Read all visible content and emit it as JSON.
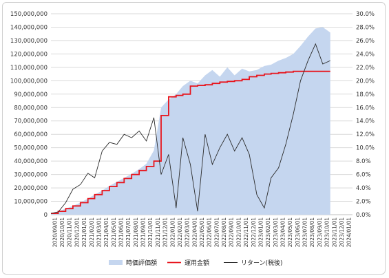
{
  "chart_data": {
    "type": "area",
    "title": "",
    "xlabel": "",
    "ylabel": "",
    "y2label": "",
    "ylim": [
      0,
      150000000
    ],
    "y_ticks": [
      "0",
      "10,000,000",
      "20,000,000",
      "30,000,000",
      "40,000,000",
      "50,000,000",
      "60,000,000",
      "70,000,000",
      "80,000,000",
      "90,000,000",
      "100,000,000",
      "110,000,000",
      "120,000,000",
      "130,000,000",
      "140,000,000",
      "150,000,000"
    ],
    "y2lim": [
      0,
      30
    ],
    "y2_ticks": [
      "0.0%",
      "2.0%",
      "4.0%",
      "6.0%",
      "8.0%",
      "10.0%",
      "12.0%",
      "14.0%",
      "16.0%",
      "18.0%",
      "20.0%",
      "22.0%",
      "24.0%",
      "26.0%",
      "28.0%",
      "30.0%"
    ],
    "x_ticks": [
      "2020/09/01",
      "2020/10/01",
      "2020/11/01",
      "2020/12/01",
      "2021/01/01",
      "2021/02/01",
      "2021/03/01",
      "2021/04/01",
      "2021/05/01",
      "2021/06/01",
      "2021/07/01",
      "2021/08/01",
      "2021/09/01",
      "2021/10/01",
      "2021/11/01",
      "2021/12/01",
      "2022/01/01",
      "2022/02/01",
      "2022/03/01",
      "2022/04/01",
      "2022/05/01",
      "2022/06/01",
      "2022/07/01",
      "2022/08/01",
      "2022/09/01",
      "2022/10/01",
      "2022/11/01",
      "2022/12/01",
      "2023/01/01",
      "2023/02/01",
      "2023/03/01",
      "2023/04/01",
      "2023/05/01",
      "2023/06/01",
      "2023/07/01",
      "2023/08/01",
      "2023/09/01",
      "2023/10/01",
      "2023/11/01",
      "2023/12/01",
      "2024/01/01"
    ],
    "legend_position": "bottom",
    "grid": true,
    "series": [
      {
        "name": "時価評価額",
        "kind": "area",
        "axis": "left",
        "color": "#c5d6ef",
        "x": [
          "2020/09/01",
          "2020/10/01",
          "2020/11/01",
          "2020/12/01",
          "2021/01/01",
          "2021/02/01",
          "2021/03/01",
          "2021/04/01",
          "2021/05/01",
          "2021/06/01",
          "2021/07/01",
          "2021/08/01",
          "2021/09/01",
          "2021/10/01",
          "2021/11/01",
          "2021/12/01",
          "2022/01/01",
          "2022/02/01",
          "2022/03/01",
          "2022/04/01",
          "2022/05/01",
          "2022/06/01",
          "2022/07/01",
          "2022/08/01",
          "2022/09/01",
          "2022/10/01",
          "2022/11/01",
          "2022/12/01",
          "2023/01/01",
          "2023/02/01",
          "2023/03/01",
          "2023/04/01",
          "2023/05/01",
          "2023/06/01",
          "2023/07/01",
          "2023/08/01",
          "2023/09/01",
          "2023/10/01",
          "2023/11/01"
        ],
        "values": [
          1200000,
          2500000,
          4500000,
          6500000,
          9000000,
          12000000,
          15000000,
          18000000,
          21500000,
          24500000,
          27500000,
          30500000,
          34000000,
          38000000,
          48000000,
          80000000,
          86000000,
          90000000,
          96000000,
          100000000,
          98000000,
          104000000,
          108000000,
          103000000,
          110000000,
          104000000,
          109000000,
          107000000,
          108000000,
          111000000,
          112000000,
          115000000,
          117000000,
          120000000,
          126000000,
          133000000,
          139000000,
          140000000,
          136000000
        ]
      },
      {
        "name": "運用金額",
        "kind": "line",
        "axis": "left",
        "color": "#e8141c",
        "x": [
          "2020/09/01",
          "2020/10/01",
          "2020/11/01",
          "2020/12/01",
          "2021/01/01",
          "2021/02/01",
          "2021/03/01",
          "2021/04/01",
          "2021/05/01",
          "2021/06/01",
          "2021/07/01",
          "2021/08/01",
          "2021/09/01",
          "2021/10/01",
          "2021/11/01",
          "2021/12/01",
          "2022/01/01",
          "2022/02/01",
          "2022/03/01",
          "2022/04/01",
          "2022/05/01",
          "2022/06/01",
          "2022/07/01",
          "2022/08/01",
          "2022/09/01",
          "2022/10/01",
          "2022/11/01",
          "2022/12/01",
          "2023/01/01",
          "2023/02/01",
          "2023/03/01",
          "2023/04/01",
          "2023/05/01",
          "2023/06/01",
          "2023/07/01",
          "2023/08/01",
          "2023/09/01",
          "2023/10/01",
          "2023/11/01"
        ],
        "values": [
          1000000,
          2500000,
          4500000,
          6500000,
          9000000,
          12000000,
          15000000,
          18000000,
          21000000,
          24000000,
          27000000,
          30000000,
          33000000,
          36000000,
          40000000,
          74000000,
          88000000,
          89000000,
          90000000,
          96000000,
          96500000,
          97000000,
          98000000,
          99000000,
          99500000,
          100000000,
          101000000,
          103000000,
          104000000,
          105000000,
          105500000,
          106000000,
          106500000,
          107000000,
          107000000,
          107000000,
          107000000,
          107000000,
          107000000
        ]
      },
      {
        "name": "リターン(税後)",
        "kind": "line",
        "axis": "right",
        "color": "#2b2b2b",
        "x": [
          "2020/09/01",
          "2020/10/01",
          "2020/11/01",
          "2020/12/01",
          "2021/01/01",
          "2021/02/01",
          "2021/03/01",
          "2021/04/01",
          "2021/05/01",
          "2021/06/01",
          "2021/07/01",
          "2021/08/01",
          "2021/09/01",
          "2021/10/01",
          "2021/11/01",
          "2021/12/01",
          "2022/01/01",
          "2022/02/01",
          "2022/03/01",
          "2022/04/01",
          "2022/05/01",
          "2022/06/01",
          "2022/07/01",
          "2022/08/01",
          "2022/09/01",
          "2022/10/01",
          "2022/11/01",
          "2022/12/01",
          "2023/01/01",
          "2023/02/01",
          "2023/03/01",
          "2023/04/01",
          "2023/05/01",
          "2023/06/01",
          "2023/07/01",
          "2023/08/01",
          "2023/09/01",
          "2023/10/01",
          "2023/11/01"
        ],
        "values": [
          0.2,
          0.4,
          1.8,
          3.8,
          4.5,
          6.2,
          5.5,
          9.5,
          10.8,
          10.5,
          12.0,
          11.5,
          12.5,
          11.0,
          14.5,
          6.0,
          9.0,
          1.0,
          11.5,
          7.5,
          0.5,
          12.0,
          7.5,
          10.0,
          12.0,
          9.5,
          11.5,
          9.0,
          3.0,
          1.0,
          5.5,
          7.0,
          10.5,
          15.0,
          20.0,
          23.0,
          25.5,
          22.5,
          23.0
        ]
      }
    ]
  }
}
